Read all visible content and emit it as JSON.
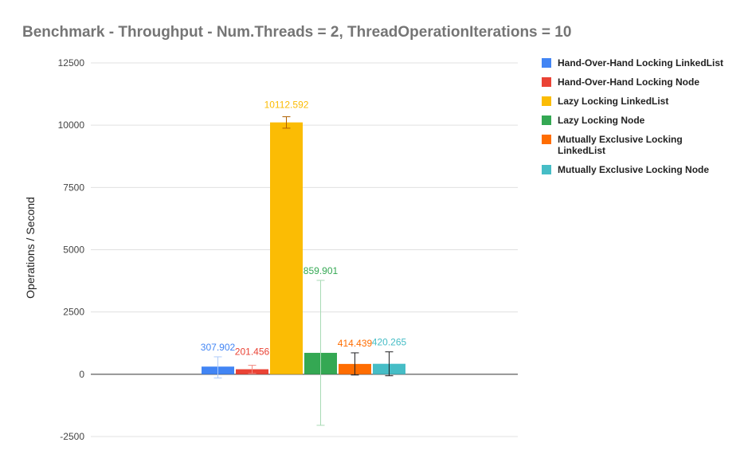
{
  "chart_data": {
    "type": "bar",
    "title": "Benchmark - Throughput - Num.Threads = 2, ThreadOperationIterations = 10",
    "ylabel": "Operations / Second",
    "xlabel": "",
    "ylim": [
      -2500,
      12500
    ],
    "yticks": [
      -2500,
      0,
      2500,
      5000,
      7500,
      10000,
      12500
    ],
    "grid": true,
    "legend_position": "right",
    "series": [
      {
        "name": "Hand-Over-Hand Locking LinkedList",
        "value": 307.902,
        "label": "307.902",
        "error_low": -150,
        "error_high": 700,
        "color": "#4285F4",
        "error_color": "#aecbfa"
      },
      {
        "name": "Hand-Over-Hand Locking Node",
        "value": 201.456,
        "label": "201.456",
        "error_low": 30,
        "error_high": 360,
        "color": "#EA4335",
        "error_color": "#f28b82"
      },
      {
        "name": "Lazy Locking LinkedList",
        "value": 10112.592,
        "label": "10112.592",
        "error_low": 9880,
        "error_high": 10340,
        "color": "#FBBC04",
        "error_color": "#b06000"
      },
      {
        "name": "Lazy Locking Node",
        "value": 859.901,
        "label": "859.901",
        "error_low": -2050,
        "error_high": 3770,
        "color": "#34A853",
        "error_color": "#a8dab5"
      },
      {
        "name": "Mutually Exclusive Locking LinkedList",
        "value": 414.439,
        "label": "414.439",
        "error_low": -30,
        "error_high": 860,
        "color": "#FF6D01",
        "error_color": "#202124"
      },
      {
        "name": "Mutually Exclusive Locking Node",
        "value": 420.265,
        "label": "420.265",
        "error_low": -60,
        "error_high": 900,
        "color": "#46BDC6",
        "error_color": "#202124"
      }
    ]
  }
}
